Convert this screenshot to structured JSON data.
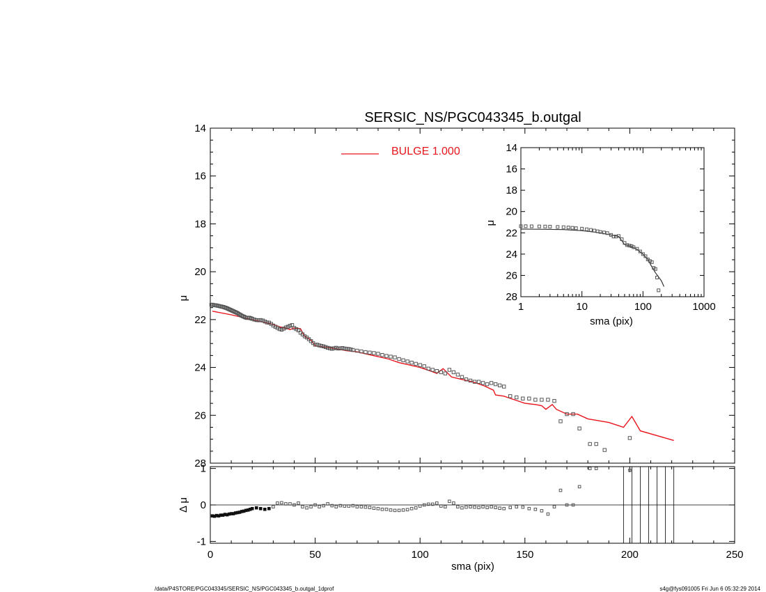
{
  "footer": {
    "left": "/data/P4STORE/PGC043345/SERSIC_NS/PGC043345_b.outgal_1dprof",
    "right": "s4g@fys091005  Fri Jun  6 05:32:29 2014"
  },
  "colors": {
    "model": "#e8141c",
    "data": "#555555",
    "axis": "#000000"
  },
  "chart_data": [
    {
      "id": "main",
      "type": "scatter",
      "title": "SERSIC_NS/PGC043345_b.outgal",
      "xlabel": "",
      "ylabel": "μ",
      "xlim": [
        0,
        250
      ],
      "ylim": [
        28,
        14
      ],
      "y_inverted": true,
      "x_ticks": [
        0,
        50,
        100,
        150,
        200,
        250
      ],
      "y_ticks": [
        14,
        16,
        18,
        20,
        22,
        24,
        26,
        28
      ],
      "legend": {
        "label": "BULGE  1.000",
        "color": "#e8141c",
        "placement": "top-center"
      },
      "series": [
        {
          "name": "",
          "kind": "points",
          "x": [
            0.5,
            1,
            1.5,
            2,
            2.5,
            3,
            3.5,
            4,
            4.5,
            5,
            5.5,
            6,
            6.5,
            7,
            7.5,
            8,
            8.5,
            9,
            9.5,
            10,
            10.5,
            11,
            11.5,
            12,
            12.5,
            13,
            13.5,
            14,
            14.5,
            15,
            15.5,
            16,
            16.5,
            17,
            17.5,
            18,
            18.5,
            19,
            19.5,
            20,
            21,
            22,
            23,
            24,
            25,
            26,
            27,
            28,
            29,
            30,
            31,
            32,
            33,
            34,
            35,
            36,
            37,
            38,
            39,
            40,
            41,
            42,
            43,
            44,
            45,
            46,
            47,
            48,
            49,
            50,
            51,
            52,
            53,
            54,
            55,
            56,
            57,
            58,
            59,
            60,
            61,
            62,
            63,
            64,
            65,
            66,
            67,
            68,
            70,
            72,
            74,
            76,
            78,
            80,
            82,
            84,
            86,
            88,
            90,
            92,
            94,
            96,
            98,
            100,
            102,
            104,
            106,
            108,
            110,
            112,
            114,
            116,
            118,
            120,
            122,
            124,
            126,
            128,
            130,
            132,
            134,
            136,
            138,
            140,
            143,
            146,
            149,
            152,
            155,
            158,
            161,
            164,
            167,
            170,
            173,
            176,
            181,
            184,
            188,
            200
          ],
          "y": [
            21.38,
            21.38,
            21.39,
            21.4,
            21.4,
            21.41,
            21.42,
            21.43,
            21.44,
            21.45,
            21.46,
            21.47,
            21.48,
            21.5,
            21.51,
            21.53,
            21.55,
            21.57,
            21.59,
            21.61,
            21.63,
            21.65,
            21.67,
            21.69,
            21.71,
            21.73,
            21.76,
            21.79,
            21.81,
            21.84,
            21.86,
            21.88,
            21.9,
            21.92,
            21.93,
            21.93,
            21.92,
            21.94,
            21.95,
            21.97,
            22.0,
            22.02,
            22.03,
            22.02,
            22.04,
            22.08,
            22.12,
            22.13,
            22.18,
            22.25,
            22.3,
            22.35,
            22.4,
            22.42,
            22.38,
            22.33,
            22.3,
            22.26,
            22.23,
            22.35,
            22.4,
            22.45,
            22.55,
            22.62,
            22.7,
            22.75,
            22.82,
            22.9,
            22.98,
            23.05,
            23.05,
            23.08,
            23.1,
            23.12,
            23.15,
            23.18,
            23.2,
            23.22,
            23.2,
            23.18,
            23.21,
            23.2,
            23.19,
            23.21,
            23.22,
            23.23,
            23.25,
            23.27,
            23.3,
            23.33,
            23.36,
            23.38,
            23.4,
            23.43,
            23.48,
            23.52,
            23.55,
            23.58,
            23.65,
            23.7,
            23.75,
            23.8,
            23.85,
            23.9,
            23.95,
            24.05,
            24.1,
            24.15,
            24.2,
            24.25,
            24.1,
            24.2,
            24.3,
            24.4,
            24.5,
            24.55,
            24.6,
            24.6,
            24.65,
            24.7,
            24.65,
            24.7,
            24.75,
            24.8,
            25.2,
            25.25,
            25.3,
            25.3,
            25.35,
            25.35,
            25.35,
            25.4,
            26.25,
            25.95,
            25.95,
            26.55,
            27.2,
            27.2,
            27.45,
            26.95
          ]
        },
        {
          "name": "BULGE  1.000",
          "kind": "line",
          "x": [
            1,
            10,
            20,
            30,
            33,
            36,
            38,
            40,
            43,
            45,
            48,
            50,
            55,
            60,
            65,
            70,
            75,
            80,
            85,
            90,
            95,
            100,
            105,
            108,
            111,
            115,
            120,
            125,
            130,
            135,
            136,
            140,
            145,
            150,
            155,
            158,
            160,
            163,
            165,
            170,
            175,
            180,
            190,
            197,
            201,
            205,
            221
          ],
          "y": [
            21.65,
            21.8,
            22.0,
            22.2,
            22.3,
            22.35,
            22.42,
            22.35,
            22.38,
            22.7,
            22.85,
            23.1,
            23.15,
            23.22,
            23.3,
            23.35,
            23.45,
            23.55,
            23.65,
            23.8,
            23.9,
            24.0,
            24.15,
            24.25,
            24.05,
            24.4,
            24.5,
            24.6,
            24.75,
            24.95,
            25.15,
            25.2,
            25.35,
            25.5,
            25.55,
            25.6,
            25.75,
            25.55,
            25.75,
            25.95,
            25.95,
            26.15,
            26.3,
            26.5,
            26.05,
            26.65,
            27.05
          ]
        }
      ]
    },
    {
      "id": "residual",
      "type": "scatter",
      "xlabel": "sma (pix)",
      "ylabel": "Δ μ",
      "xlim": [
        0,
        250
      ],
      "ylim": [
        -1.05,
        1.05
      ],
      "x_ticks": [
        0,
        50,
        100,
        150,
        200,
        250
      ],
      "y_ticks": [
        -1,
        0,
        1
      ],
      "zero_line": 0,
      "series": [
        {
          "name": "",
          "kind": "points",
          "x": [
            1,
            2,
            3,
            4,
            5,
            6,
            7,
            8,
            9,
            10,
            11,
            12,
            13,
            14,
            15,
            16,
            17,
            18,
            19,
            20,
            22,
            24,
            26,
            28,
            30,
            32,
            34,
            36,
            38,
            40,
            42,
            44,
            46,
            48,
            50,
            52,
            54,
            56,
            58,
            60,
            62,
            64,
            66,
            68,
            70,
            72,
            74,
            76,
            78,
            80,
            82,
            84,
            86,
            88,
            90,
            92,
            94,
            96,
            98,
            100,
            102,
            104,
            106,
            108,
            110,
            112,
            114,
            116,
            118,
            120,
            122,
            124,
            126,
            128,
            130,
            132,
            134,
            136,
            138,
            140,
            143,
            146,
            149,
            152,
            155,
            158,
            161,
            164,
            167,
            170,
            173,
            176,
            181,
            184,
            200
          ],
          "y": [
            -0.3,
            -0.31,
            -0.29,
            -0.3,
            -0.28,
            -0.28,
            -0.26,
            -0.27,
            -0.25,
            -0.24,
            -0.24,
            -0.22,
            -0.21,
            -0.2,
            -0.18,
            -0.17,
            -0.15,
            -0.14,
            -0.12,
            -0.1,
            -0.08,
            -0.1,
            -0.12,
            -0.1,
            -0.05,
            0.05,
            0.06,
            0.03,
            0.03,
            0.0,
            0.05,
            -0.05,
            -0.08,
            -0.05,
            0.0,
            -0.05,
            -0.02,
            0.03,
            -0.02,
            -0.05,
            -0.02,
            -0.03,
            -0.03,
            -0.02,
            -0.05,
            -0.05,
            -0.06,
            -0.07,
            -0.09,
            -0.1,
            -0.12,
            -0.12,
            -0.14,
            -0.15,
            -0.15,
            -0.14,
            -0.13,
            -0.1,
            -0.08,
            -0.03,
            0.0,
            0.02,
            0.02,
            0.05,
            -0.03,
            -0.05,
            0.1,
            0.05,
            -0.05,
            -0.08,
            -0.06,
            -0.05,
            -0.06,
            -0.07,
            -0.05,
            -0.07,
            -0.05,
            -0.07,
            -0.09,
            -0.1,
            -0.07,
            -0.05,
            -0.06,
            -0.1,
            -0.12,
            -0.16,
            -0.25,
            -0.05,
            0.4,
            0.0,
            0.0,
            0.5,
            1.0,
            1.0,
            0.95
          ]
        }
      ],
      "vertical_lines_x": [
        197,
        201,
        205,
        209,
        213,
        217,
        221
      ]
    },
    {
      "id": "inset",
      "type": "scatter",
      "xlabel": "sma (pix)",
      "ylabel": "μ",
      "x_scale": "log",
      "xlim": [
        1,
        1000
      ],
      "ylim": [
        28,
        14
      ],
      "y_inverted": true,
      "x_ticks": [
        1,
        10,
        100,
        1000
      ],
      "x_tick_labels": [
        "1",
        "10",
        "100",
        "1000"
      ],
      "y_ticks": [
        14,
        16,
        18,
        20,
        22,
        24,
        26,
        28
      ],
      "series": [
        {
          "name": "",
          "kind": "points",
          "x": [
            1,
            1.2,
            1.5,
            2,
            2.5,
            3,
            4,
            5,
            6,
            7,
            8,
            10,
            12,
            14,
            16,
            18,
            20,
            23,
            26,
            30,
            33,
            36,
            40,
            45,
            50,
            55,
            60,
            65,
            70,
            80,
            90,
            100,
            110,
            120,
            130,
            140,
            150,
            160,
            170,
            180
          ],
          "y": [
            21.38,
            21.38,
            21.39,
            21.4,
            21.41,
            21.42,
            21.45,
            21.47,
            21.5,
            21.53,
            21.57,
            21.61,
            21.67,
            21.73,
            21.79,
            21.86,
            21.92,
            21.97,
            22.03,
            22.2,
            22.35,
            22.35,
            22.3,
            22.6,
            22.95,
            23.15,
            23.2,
            23.25,
            23.35,
            23.5,
            23.75,
            24.0,
            24.2,
            24.5,
            24.65,
            24.75,
            25.3,
            25.4,
            26.2,
            27.4
          ]
        },
        {
          "name": "BULGE  1.000",
          "kind": "line",
          "x": [
            1,
            2,
            5,
            10,
            20,
            30,
            40,
            50,
            60,
            80,
            100,
            120,
            140,
            160,
            180,
            200,
            221
          ],
          "y": [
            21.65,
            21.67,
            21.7,
            21.8,
            22.0,
            22.2,
            22.35,
            23.1,
            23.22,
            23.55,
            24.0,
            24.5,
            25.2,
            25.75,
            26.15,
            26.5,
            27.05
          ]
        }
      ]
    }
  ]
}
